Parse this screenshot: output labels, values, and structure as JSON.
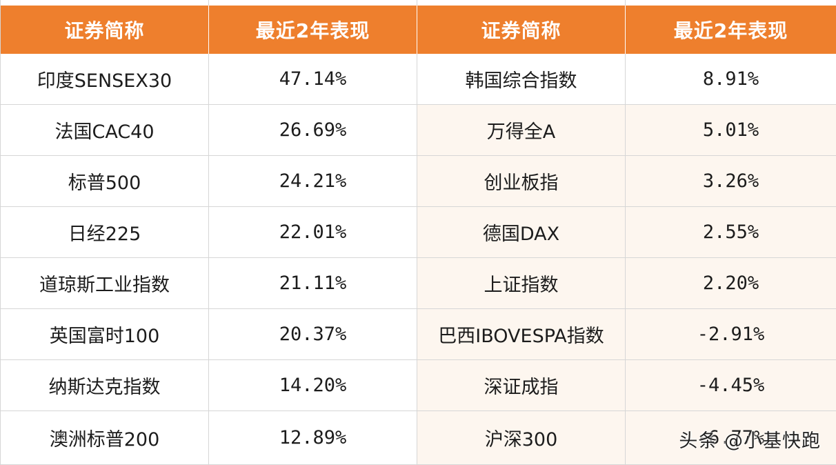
{
  "table": {
    "headers": [
      "证券简称",
      "最近2年表现",
      "证券简称",
      "最近2年表现"
    ],
    "rows": [
      [
        "印度SENSEX30",
        "47.14%",
        "韩国综合指数",
        "8.91%"
      ],
      [
        "法国CAC40",
        "26.69%",
        "万得全A",
        "5.01%"
      ],
      [
        "标普500",
        "24.21%",
        "创业板指",
        "3.26%"
      ],
      [
        "日经225",
        "22.01%",
        "德国DAX",
        "2.55%"
      ],
      [
        "道琼斯工业指数",
        "21.11%",
        "上证指数",
        "2.20%"
      ],
      [
        "英国富时100",
        "20.37%",
        "巴西IBOVESPA指数",
        "-2.91%"
      ],
      [
        "纳斯达克指数",
        "14.20%",
        "深证成指",
        "-4.45%"
      ],
      [
        "澳洲标普200",
        "12.89%",
        "沪深300",
        "-6.77%"
      ]
    ]
  },
  "watermark": "头条 @小基快跑",
  "colors": {
    "header_bg": "#ee7f2d",
    "header_text": "#ffffff",
    "tint_bg": "#fdf6ef",
    "grid": "#d6d6d6"
  }
}
